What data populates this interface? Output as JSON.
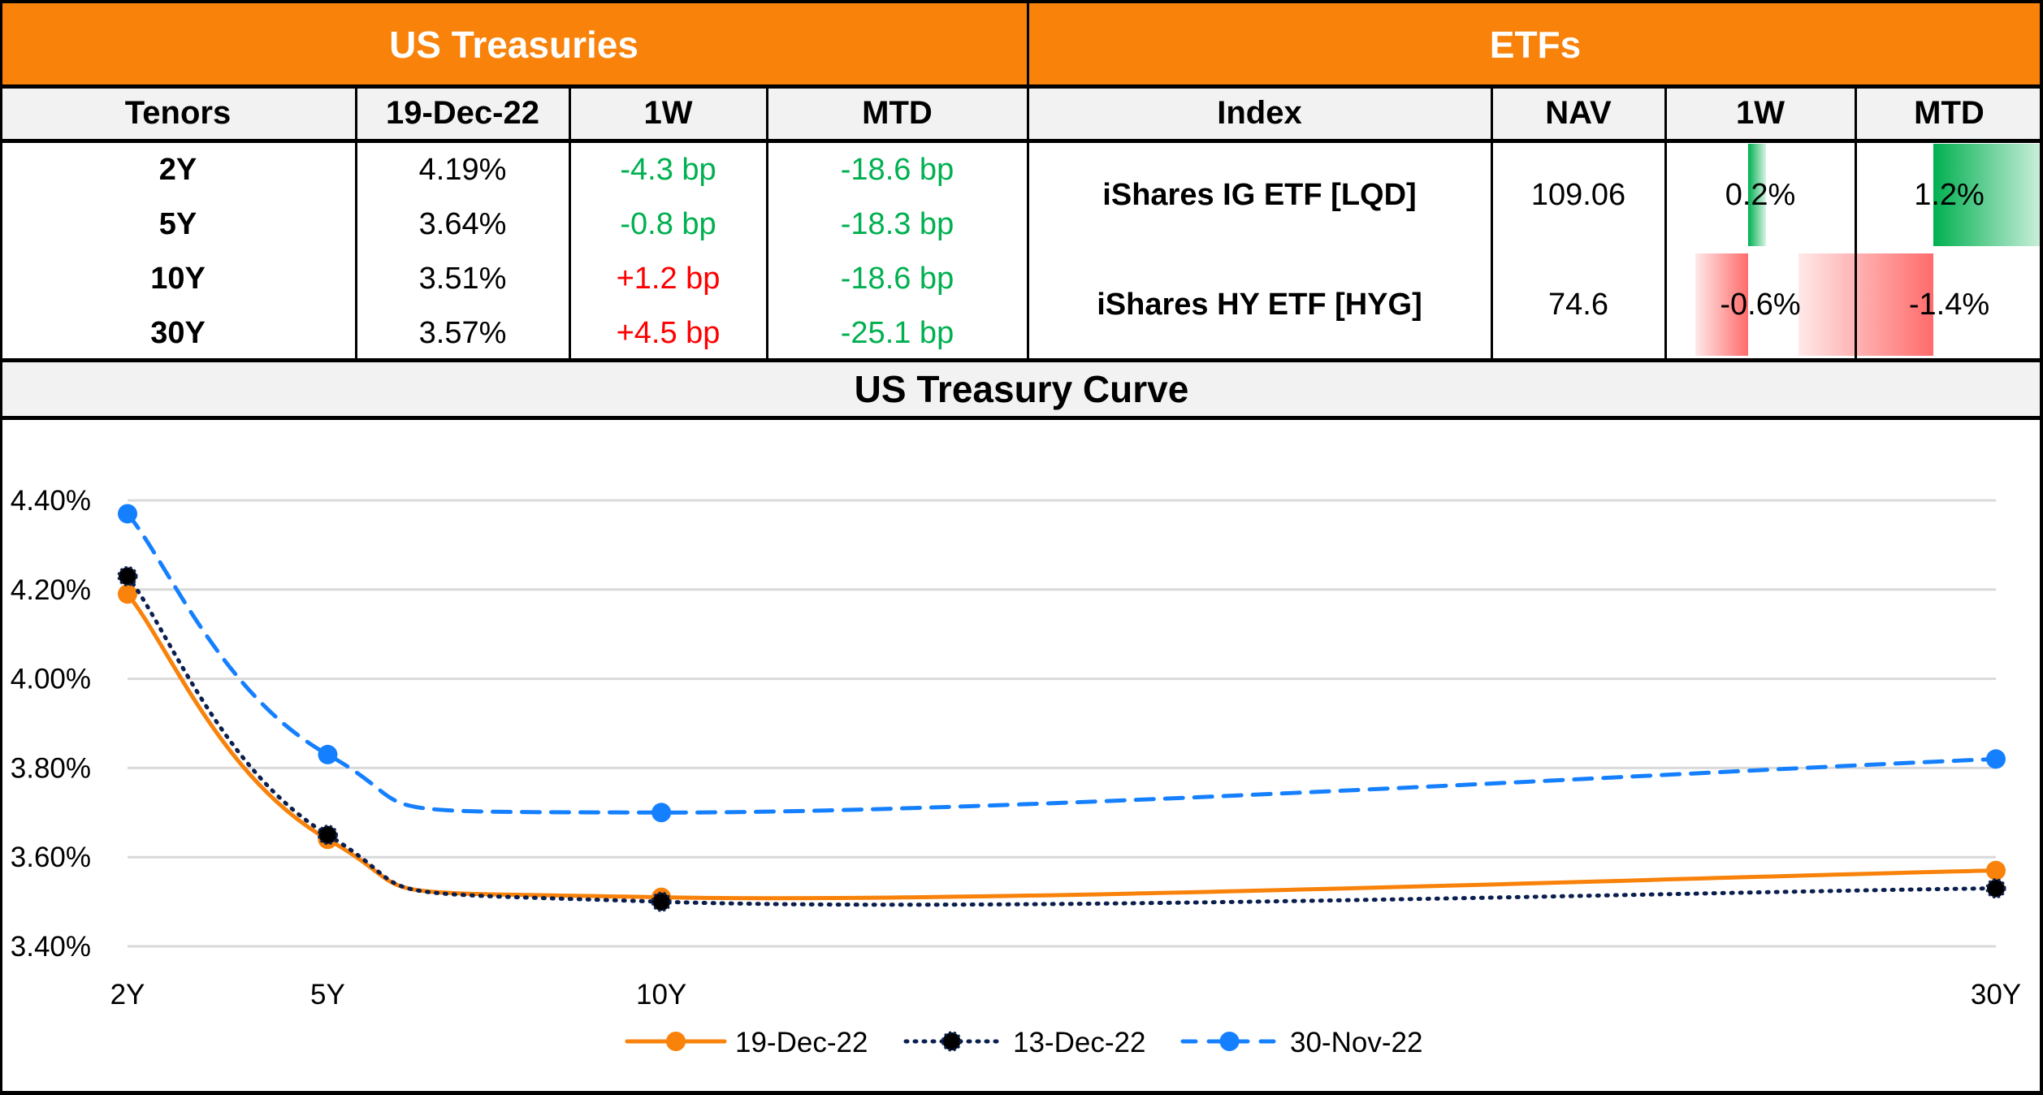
{
  "treasuries": {
    "title": "US Treasuries",
    "columns": [
      "Tenors",
      "19-Dec-22",
      "1W",
      "MTD"
    ],
    "rows": [
      {
        "tenor": "2Y",
        "yield": "4.19%",
        "w1": "-4.3 bp",
        "w1_dir": "down",
        "mtd": "-18.6 bp",
        "mtd_dir": "down"
      },
      {
        "tenor": "5Y",
        "yield": "3.64%",
        "w1": "-0.8 bp",
        "w1_dir": "down",
        "mtd": "-18.3 bp",
        "mtd_dir": "down"
      },
      {
        "tenor": "10Y",
        "yield": "3.51%",
        "w1": "+1.2 bp",
        "w1_dir": "up",
        "mtd": "-18.6 bp",
        "mtd_dir": "down"
      },
      {
        "tenor": "30Y",
        "yield": "3.57%",
        "w1": "+4.5 bp",
        "w1_dir": "up",
        "mtd": "-25.1 bp",
        "mtd_dir": "down"
      }
    ]
  },
  "etfs": {
    "title": "ETFs",
    "columns": [
      "Index",
      "NAV",
      "1W",
      "MTD"
    ],
    "rows": [
      {
        "index": "iShares IG ETF [LQD]",
        "nav": "109.06",
        "w1": "0.2%",
        "w1_value": 0.2,
        "mtd": "1.2%",
        "mtd_value": 1.2
      },
      {
        "index": "iShares HY ETF [HYG]",
        "nav": "74.6",
        "w1": "-0.6%",
        "w1_value": -0.6,
        "mtd": "-1.4%",
        "mtd_value": -1.4
      }
    ]
  },
  "colors": {
    "band": "#F8820A",
    "header_bg": "#F2F2F2",
    "positive": "#00B050",
    "negative": "#FF0000",
    "bar_positive": "#00B050",
    "bar_negative": "#FF6B6B"
  },
  "chart_data": {
    "type": "line",
    "title": "US Treasury Curve",
    "xlabel": "",
    "ylabel": "",
    "x": [
      2,
      5,
      10,
      30
    ],
    "x_tick_labels": [
      "2Y",
      "5Y",
      "10Y",
      "30Y"
    ],
    "xlim": [
      2,
      30
    ],
    "ylim": [
      3.4,
      4.4
    ],
    "y_ticks": [
      3.4,
      3.6,
      3.8,
      4.0,
      4.2,
      4.4
    ],
    "y_tick_labels": [
      "3.40%",
      "3.60%",
      "3.80%",
      "4.00%",
      "4.20%",
      "4.40%"
    ],
    "grid": true,
    "legend_position": "bottom",
    "series": [
      {
        "name": "19-Dec-22",
        "values": [
          4.19,
          3.64,
          3.51,
          3.57
        ],
        "color": "#F8820A",
        "style": "solid"
      },
      {
        "name": "13-Dec-22",
        "values": [
          4.23,
          3.65,
          3.5,
          3.53
        ],
        "color": "#0B1F4F",
        "style": "dotted"
      },
      {
        "name": "30-Nov-22",
        "values": [
          4.37,
          3.83,
          3.7,
          3.82
        ],
        "color": "#1580FF",
        "style": "dashed"
      }
    ]
  }
}
